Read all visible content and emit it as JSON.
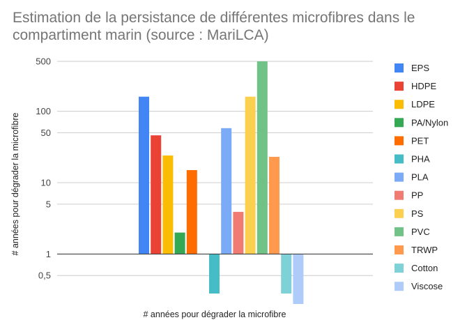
{
  "chart_data": {
    "type": "bar",
    "title": "Estimation de la persistance de différentes microfibres dans le compartiment marin (source : MariLCA)",
    "xlabel": "# années pour dégrader la microfibre",
    "ylabel": "# années pour dégrader la microfibre",
    "yscale": "log",
    "ylim": [
      0.2,
      500
    ],
    "yticks": [
      {
        "value": 500,
        "label": "500"
      },
      {
        "value": 100,
        "label": "100"
      },
      {
        "value": 50,
        "label": "50"
      },
      {
        "value": 10,
        "label": "10"
      },
      {
        "value": 5,
        "label": "5"
      },
      {
        "value": 1,
        "label": "1"
      },
      {
        "value": 0.5,
        "label": "0,5"
      }
    ],
    "grid": true,
    "legend_position": "right",
    "series": [
      {
        "name": "EPS",
        "color": "#4285F4",
        "value": 160,
        "group": 0
      },
      {
        "name": "HDPE",
        "color": "#EA4335",
        "value": 46,
        "group": 0
      },
      {
        "name": "LDPE",
        "color": "#FBBC04",
        "value": 24,
        "group": 0
      },
      {
        "name": "PA/Nylon",
        "color": "#34A853",
        "value": 2,
        "group": 0
      },
      {
        "name": "PET",
        "color": "#FF6D01",
        "value": 15,
        "group": 0
      },
      {
        "name": "PHA",
        "color": "#46BDC6",
        "value": 0.28,
        "group": 1
      },
      {
        "name": "PLA",
        "color": "#7BAAF7",
        "value": 58,
        "group": 1
      },
      {
        "name": "PP",
        "color": "#F07B72",
        "value": 3.9,
        "group": 1
      },
      {
        "name": "PS",
        "color": "#FCD04F",
        "value": 160,
        "group": 1
      },
      {
        "name": "PVC",
        "color": "#71C287",
        "value": 500,
        "group": 1
      },
      {
        "name": "TRWP",
        "color": "#FF994D",
        "value": 23,
        "group": 1
      },
      {
        "name": "Cotton",
        "color": "#7ED1D7",
        "value": 0.28,
        "group": 1
      },
      {
        "name": "Viscose",
        "color": "#AFCBFA",
        "value": 0.2,
        "group": 1
      }
    ]
  }
}
